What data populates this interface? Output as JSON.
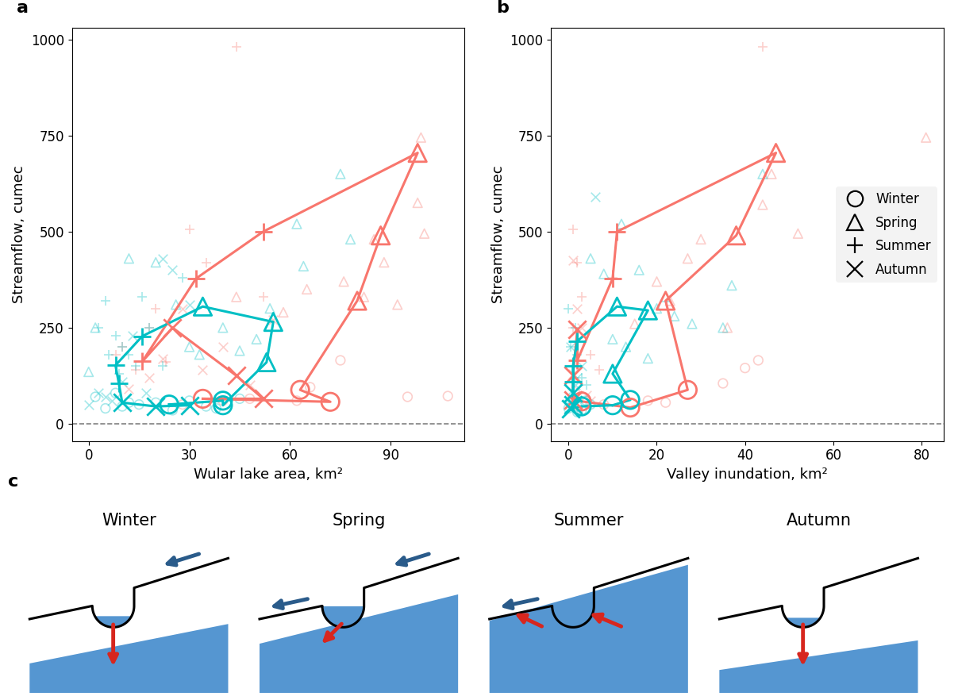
{
  "chart_data": [
    {
      "type": "scatter",
      "title": "a",
      "x_label": "Wular lake area, km²",
      "y_label": "Streamflow, cumec",
      "xlim": [
        -5,
        112
      ],
      "xticks": [
        0,
        30,
        60,
        90
      ],
      "ylim": [
        -45,
        1030
      ],
      "yticks": [
        0,
        250,
        500,
        750,
        1000
      ],
      "reference_y": 0,
      "series": [
        {
          "name": "Winter",
          "color": "#F8766D",
          "marker": "circle",
          "x": [
            107,
            75,
            66,
            48,
            62,
            95,
            28,
            40
          ],
          "y": [
            72,
            165,
            95,
            65,
            60,
            70,
            50,
            60
          ]
        },
        {
          "name": "Spring",
          "color": "#F8766D",
          "marker": "triangle",
          "x": [
            99,
            98,
            100,
            85,
            76,
            82,
            58,
            65,
            88,
            92,
            44
          ],
          "y": [
            745,
            575,
            495,
            480,
            370,
            330,
            290,
            350,
            420,
            310,
            330
          ]
        },
        {
          "name": "Summer",
          "color": "#F8766D",
          "marker": "plus",
          "x": [
            44,
            30,
            20,
            10,
            14,
            23,
            35,
            52,
            18,
            8
          ],
          "y": [
            980,
            505,
            300,
            200,
            140,
            160,
            420,
            330,
            250,
            180
          ]
        },
        {
          "name": "Autumn",
          "color": "#F8766D",
          "marker": "x",
          "x": [
            28,
            40,
            22,
            55,
            18,
            12,
            34,
            48
          ],
          "y": [
            300,
            200,
            170,
            270,
            120,
            90,
            140,
            100
          ]
        },
        {
          "name": "Winter",
          "color": "#00BFC4",
          "marker": "circle",
          "x": [
            5,
            10,
            15,
            20,
            25,
            30,
            35,
            2,
            8,
            12,
            45,
            38
          ],
          "y": [
            40,
            45,
            50,
            55,
            35,
            60,
            45,
            70,
            80,
            55,
            65,
            40
          ]
        },
        {
          "name": "Spring",
          "color": "#00BFC4",
          "marker": "triangle",
          "x": [
            0,
            2,
            12,
            20,
            26,
            30,
            45,
            50,
            62,
            64,
            75,
            78,
            54,
            40,
            33
          ],
          "y": [
            135,
            250,
            430,
            420,
            310,
            200,
            190,
            220,
            520,
            410,
            650,
            480,
            300,
            250,
            180
          ]
        },
        {
          "name": "Summer",
          "color": "#00BFC4",
          "marker": "plus",
          "x": [
            3,
            5,
            8,
            10,
            12,
            14,
            16,
            18,
            22,
            28,
            6,
            9
          ],
          "y": [
            250,
            320,
            230,
            200,
            180,
            150,
            330,
            250,
            150,
            380,
            180,
            130
          ]
        },
        {
          "name": "Autumn",
          "color": "#00BFC4",
          "marker": "x",
          "x": [
            0,
            3,
            5,
            7,
            10,
            13,
            17,
            22,
            25,
            30
          ],
          "y": [
            50,
            80,
            70,
            60,
            110,
            230,
            80,
            430,
            400,
            310
          ]
        }
      ],
      "trajectories": [
        {
          "color": "#F8766D",
          "x": [
            34,
            72,
            63,
            80,
            87,
            98,
            52,
            32,
            16,
            25,
            44,
            52
          ],
          "y": [
            65,
            57,
            88,
            320,
            490,
            705,
            500,
            378,
            162,
            250,
            125,
            65
          ],
          "seasons": [
            "Winter",
            "Winter",
            "Winter",
            "Spring",
            "Spring",
            "Spring",
            "Summer",
            "Summer",
            "Summer",
            "Autumn",
            "Autumn",
            "Autumn"
          ]
        },
        {
          "color": "#00BFC4",
          "x": [
            24,
            40,
            40,
            53,
            55,
            34,
            16,
            8,
            9,
            10,
            20,
            30
          ],
          "y": [
            50,
            60,
            48,
            160,
            265,
            305,
            228,
            152,
            105,
            55,
            45,
            48
          ],
          "seasons": [
            "Winter",
            "Winter",
            "Winter",
            "Spring",
            "Spring",
            "Spring",
            "Summer",
            "Summer",
            "Summer",
            "Autumn",
            "Autumn",
            "Autumn"
          ]
        }
      ]
    },
    {
      "type": "scatter",
      "title": "b",
      "x_label": "Valley inundation, km²",
      "y_label": "Streamflow, cumec",
      "xlim": [
        -4,
        85
      ],
      "xticks": [
        0,
        20,
        40,
        60,
        80
      ],
      "ylim": [
        -45,
        1030
      ],
      "yticks": [
        0,
        250,
        500,
        750,
        1000
      ],
      "reference_y": 0,
      "legend": "center right",
      "series": [
        {
          "name": "Winter",
          "color": "#F8766D",
          "marker": "circle",
          "x": [
            43,
            40,
            35,
            18,
            22,
            8
          ],
          "y": [
            165,
            145,
            105,
            60,
            55,
            50
          ]
        },
        {
          "name": "Spring",
          "color": "#F8766D",
          "marker": "triangle",
          "x": [
            81,
            44,
            52,
            46,
            30,
            27,
            20,
            23,
            15,
            36
          ],
          "y": [
            745,
            570,
            495,
            650,
            480,
            430,
            370,
            320,
            260,
            250
          ]
        },
        {
          "name": "Summer",
          "color": "#F8766D",
          "marker": "plus",
          "x": [
            44,
            1,
            2,
            3,
            1,
            5,
            7,
            10
          ],
          "y": [
            980,
            505,
            420,
            330,
            250,
            180,
            140,
            380
          ]
        },
        {
          "name": "Autumn",
          "color": "#F8766D",
          "marker": "x",
          "x": [
            1,
            2,
            3,
            1,
            2,
            4,
            5
          ],
          "y": [
            425,
            300,
            250,
            130,
            90,
            75,
            60
          ]
        },
        {
          "name": "Winter",
          "color": "#00BFC4",
          "marker": "circle",
          "x": [
            0,
            1,
            2,
            3,
            4,
            5,
            1,
            2
          ],
          "y": [
            40,
            55,
            45,
            35,
            60,
            50,
            70,
            30
          ]
        },
        {
          "name": "Spring",
          "color": "#00BFC4",
          "marker": "triangle",
          "x": [
            5,
            8,
            12,
            16,
            20,
            24,
            28,
            35,
            37,
            44,
            10,
            13,
            18,
            22
          ],
          "y": [
            430,
            390,
            520,
            400,
            300,
            280,
            260,
            250,
            360,
            650,
            220,
            200,
            170,
            330
          ]
        },
        {
          "name": "Summer",
          "color": "#00BFC4",
          "marker": "plus",
          "x": [
            0,
            0.5,
            1,
            1.5,
            2,
            3,
            4
          ],
          "y": [
            300,
            200,
            150,
            250,
            180,
            120,
            100
          ]
        },
        {
          "name": "Autumn",
          "color": "#00BFC4",
          "marker": "x",
          "x": [
            0,
            1,
            2,
            3,
            6,
            0.5,
            1.5
          ],
          "y": [
            50,
            80,
            120,
            150,
            590,
            200,
            100
          ]
        }
      ],
      "trajectories": [
        {
          "color": "#F8766D",
          "x": [
            14,
            27,
            22,
            38,
            47,
            11,
            10,
            2,
            2,
            1,
            1,
            3
          ],
          "y": [
            42,
            88,
            320,
            490,
            705,
            500,
            378,
            165,
            245,
            125,
            62,
            58
          ],
          "seasons": [
            "Winter",
            "Winter",
            "Spring",
            "Spring",
            "Spring",
            "Summer",
            "Summer",
            "Summer",
            "Autumn",
            "Autumn",
            "Autumn",
            "Winter"
          ]
        },
        {
          "color": "#00BFC4",
          "x": [
            10,
            14,
            10,
            18,
            11,
            2,
            1,
            1,
            1,
            1,
            0.5,
            3
          ],
          "y": [
            48,
            62,
            130,
            295,
            305,
            215,
            150,
            110,
            80,
            50,
            40,
            45
          ],
          "seasons": [
            "Winter",
            "Winter",
            "Spring",
            "Spring",
            "Spring",
            "Summer",
            "Summer",
            "Summer",
            "Autumn",
            "Autumn",
            "Autumn",
            "Winter"
          ]
        }
      ]
    }
  ],
  "diagram": {
    "label": "c",
    "panels": [
      "Winter",
      "Spring",
      "Summer",
      "Autumn"
    ]
  }
}
